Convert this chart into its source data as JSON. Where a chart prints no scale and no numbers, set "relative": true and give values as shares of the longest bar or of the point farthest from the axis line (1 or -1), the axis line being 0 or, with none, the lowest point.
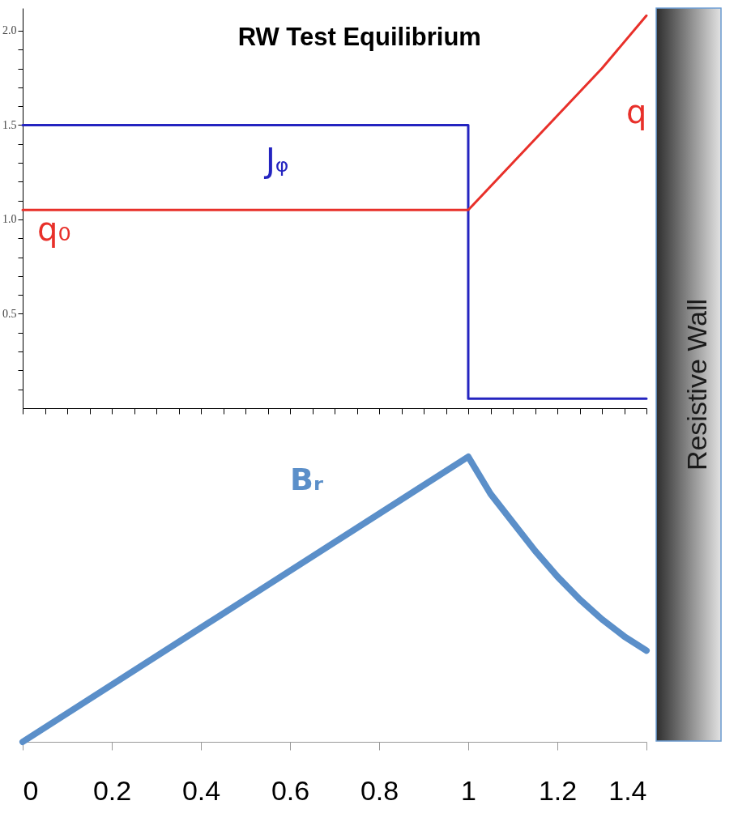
{
  "chart_data": [
    {
      "type": "line",
      "title": "RW Test Equilibrium",
      "xlim": [
        0,
        1.4
      ],
      "ylim": [
        0,
        2.12
      ],
      "xticks": [
        {
          "value": 0,
          "label": null
        },
        {
          "value": 0.05,
          "label": null
        },
        {
          "value": 0.1,
          "label": null
        },
        {
          "value": 0.15,
          "label": null
        },
        {
          "value": 0.2,
          "label": null
        },
        {
          "value": 0.25,
          "label": null
        },
        {
          "value": 0.3,
          "label": null
        },
        {
          "value": 0.35,
          "label": null
        },
        {
          "value": 0.4,
          "label": null
        },
        {
          "value": 0.45,
          "label": null
        },
        {
          "value": 0.5,
          "label": null
        },
        {
          "value": 0.55,
          "label": null
        },
        {
          "value": 0.6,
          "label": null
        },
        {
          "value": 0.65,
          "label": null
        },
        {
          "value": 0.7,
          "label": null
        },
        {
          "value": 0.75,
          "label": null
        },
        {
          "value": 0.8,
          "label": null
        },
        {
          "value": 0.85,
          "label": null
        },
        {
          "value": 0.9,
          "label": null
        },
        {
          "value": 0.95,
          "label": null
        },
        {
          "value": 1,
          "label": null
        },
        {
          "value": 1.05,
          "label": null
        },
        {
          "value": 1.1,
          "label": null
        },
        {
          "value": 1.15,
          "label": null
        },
        {
          "value": 1.2,
          "label": null
        },
        {
          "value": 1.25,
          "label": null
        },
        {
          "value": 1.3,
          "label": null
        },
        {
          "value": 1.35,
          "label": null
        },
        {
          "value": 1.4,
          "label": null
        }
      ],
      "yticks": [
        {
          "value": 0.1,
          "label": null
        },
        {
          "value": 0.2,
          "label": null
        },
        {
          "value": 0.3,
          "label": null
        },
        {
          "value": 0.4,
          "label": null
        },
        0.5,
        {
          "value": 0.6,
          "label": null
        },
        {
          "value": 0.7,
          "label": null
        },
        {
          "value": 0.8,
          "label": null
        },
        {
          "value": 0.9,
          "label": null
        },
        {
          "value": 1,
          "label": "1.0"
        },
        {
          "value": 1.1,
          "label": null
        },
        {
          "value": 1.2,
          "label": null
        },
        {
          "value": 1.3,
          "label": null
        },
        {
          "value": 1.4,
          "label": null
        },
        1.5,
        {
          "value": 1.6,
          "label": null
        },
        {
          "value": 1.7,
          "label": null
        },
        {
          "value": 1.8,
          "label": null
        },
        {
          "value": 1.9,
          "label": null
        },
        {
          "value": 2,
          "label": "2.0"
        }
      ],
      "tick_labels": "y",
      "grid": false,
      "legend": false,
      "marker": "none",
      "line_style": "solid",
      "series": [
        {
          "name": "Jᵩ",
          "type": "step",
          "color": "#2424c0",
          "x": [
            0,
            1,
            1.4
          ],
          "values": [
            1.5,
            0.05,
            0.05
          ]
        },
        {
          "name": "q",
          "color": "#e8302a",
          "x": [
            0,
            1,
            1.1,
            1.2,
            1.3,
            1.4
          ],
          "values": [
            1.05,
            1.05,
            1.3,
            1.55,
            1.8,
            2.08
          ]
        }
      ],
      "annotations": [
        {
          "text": "q₀",
          "x": 0,
          "y": 1.05
        },
        "Resistive Wall"
      ]
    },
    {
      "type": "line",
      "relative": true,
      "xlim": [
        0,
        1.4
      ],
      "xticks": [
        0,
        0.2,
        0.4,
        0.6,
        0.8,
        1,
        1.2,
        1.4
      ],
      "grid": false,
      "legend": false,
      "marker": "none",
      "line_style": "solid",
      "series": [
        {
          "name": "Bᵣ",
          "color": "#5b8fc9",
          "x": [
            0,
            0.5,
            1,
            1.05,
            1.1,
            1.15,
            1.2,
            1.25,
            1.3,
            1.35,
            1.4
          ],
          "values": [
            0,
            0.5,
            1,
            0.87,
            0.77,
            0.67,
            0.58,
            0.5,
            0.43,
            0.37,
            0.32
          ]
        }
      ]
    }
  ]
}
